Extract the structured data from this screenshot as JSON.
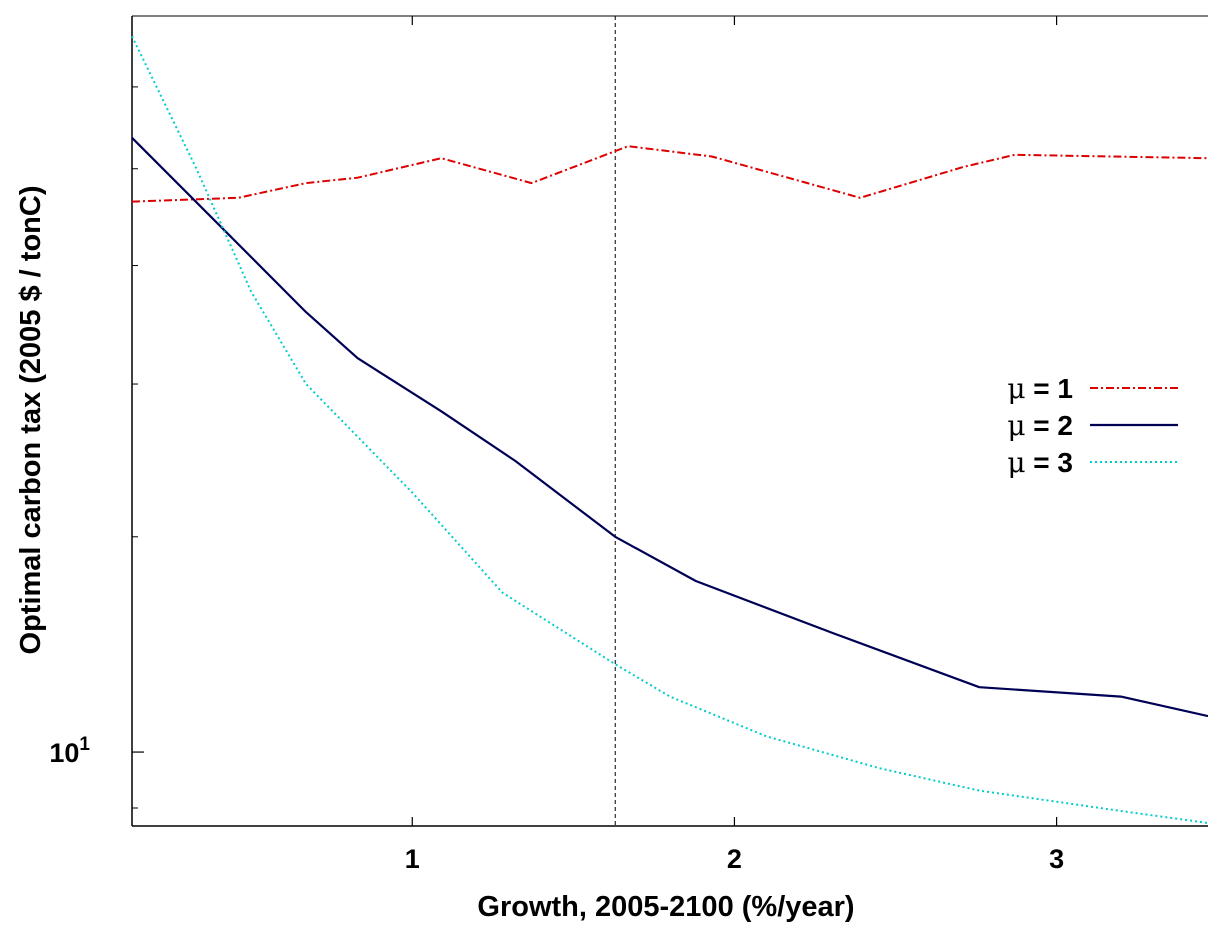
{
  "chart_data": {
    "type": "line",
    "xlabel": "Growth, 2005-2100 (%/year)",
    "ylabel": "Optimal carbon tax (2005 $ / tonC)",
    "xlim": [
      0.13,
      3.47
    ],
    "ylim": [
      8.7,
      40
    ],
    "y_scale": "log",
    "grid": false,
    "legend_position": "right",
    "x_ticks": [
      {
        "value": 1,
        "label": "1"
      },
      {
        "value": 2,
        "label": "2"
      },
      {
        "value": 3,
        "label": "3"
      }
    ],
    "y_ticks": [
      {
        "value": 10,
        "base": "10",
        "exp": "1"
      }
    ],
    "reference_line": {
      "x": 1.63,
      "style": "dashed"
    },
    "series": [
      {
        "name": "μ = 1",
        "label_prefix": "μ",
        "label_suffix": " = 1",
        "color": "#dd0000",
        "dash": "8 3 2 3",
        "width": 2,
        "x": [
          0.13,
          0.46,
          0.67,
          0.83,
          1.09,
          1.37,
          1.67,
          1.93,
          2.39,
          2.71,
          2.87,
          3.47
        ],
        "y": [
          28.2,
          28.4,
          29.2,
          29.5,
          30.6,
          29.2,
          31.3,
          30.7,
          28.4,
          30.1,
          30.8,
          30.6
        ]
      },
      {
        "name": "μ = 2",
        "label_prefix": "μ",
        "label_suffix": " = 2",
        "color": "#000055",
        "dash": "",
        "width": 2.2,
        "x": [
          0.13,
          0.5,
          0.67,
          0.83,
          1.09,
          1.32,
          1.63,
          1.88,
          2.31,
          2.76,
          3.2,
          3.47
        ],
        "y": [
          31.8,
          25.4,
          22.9,
          21.0,
          19.0,
          17.3,
          15.0,
          13.8,
          12.5,
          11.3,
          11.1,
          10.7
        ]
      },
      {
        "name": "μ = 3",
        "label_prefix": "μ",
        "label_suffix": " = 3",
        "color": "#00cccc",
        "dash": "2 3",
        "width": 2,
        "x": [
          0.13,
          0.33,
          0.5,
          0.67,
          1.0,
          1.28,
          1.63,
          1.8,
          2.1,
          2.45,
          2.76,
          3.2,
          3.47
        ],
        "y": [
          38.5,
          30.0,
          23.8,
          20.0,
          16.3,
          13.5,
          11.8,
          11.1,
          10.3,
          9.7,
          9.3,
          8.95,
          8.75
        ]
      }
    ]
  }
}
